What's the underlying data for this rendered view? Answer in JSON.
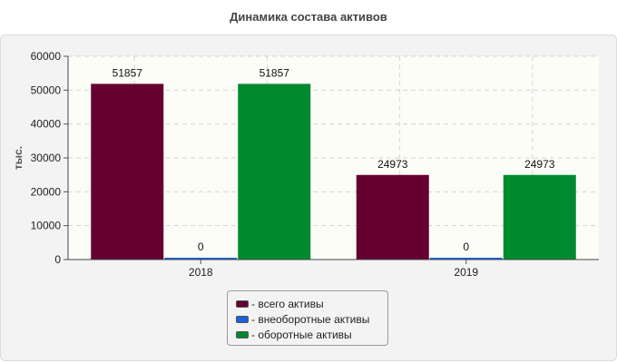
{
  "chart_data": {
    "type": "bar",
    "title": "Динамика состава активов",
    "ylabel": "тыс.",
    "xlabel": "",
    "categories": [
      "2018",
      "2019"
    ],
    "ylim": [
      0,
      60000
    ],
    "yticks": [
      0,
      10000,
      20000,
      30000,
      40000,
      50000,
      60000
    ],
    "grid": true,
    "legend_position": "bottom",
    "series": [
      {
        "name": "- всего активы",
        "color": "#650030",
        "values": [
          51857,
          24973
        ]
      },
      {
        "name": "- внеоборотные активы",
        "color": "#1a62d8",
        "values": [
          0,
          0
        ]
      },
      {
        "name": "- оборотные активы",
        "color": "#008a30",
        "values": [
          51857,
          24973
        ]
      }
    ]
  }
}
